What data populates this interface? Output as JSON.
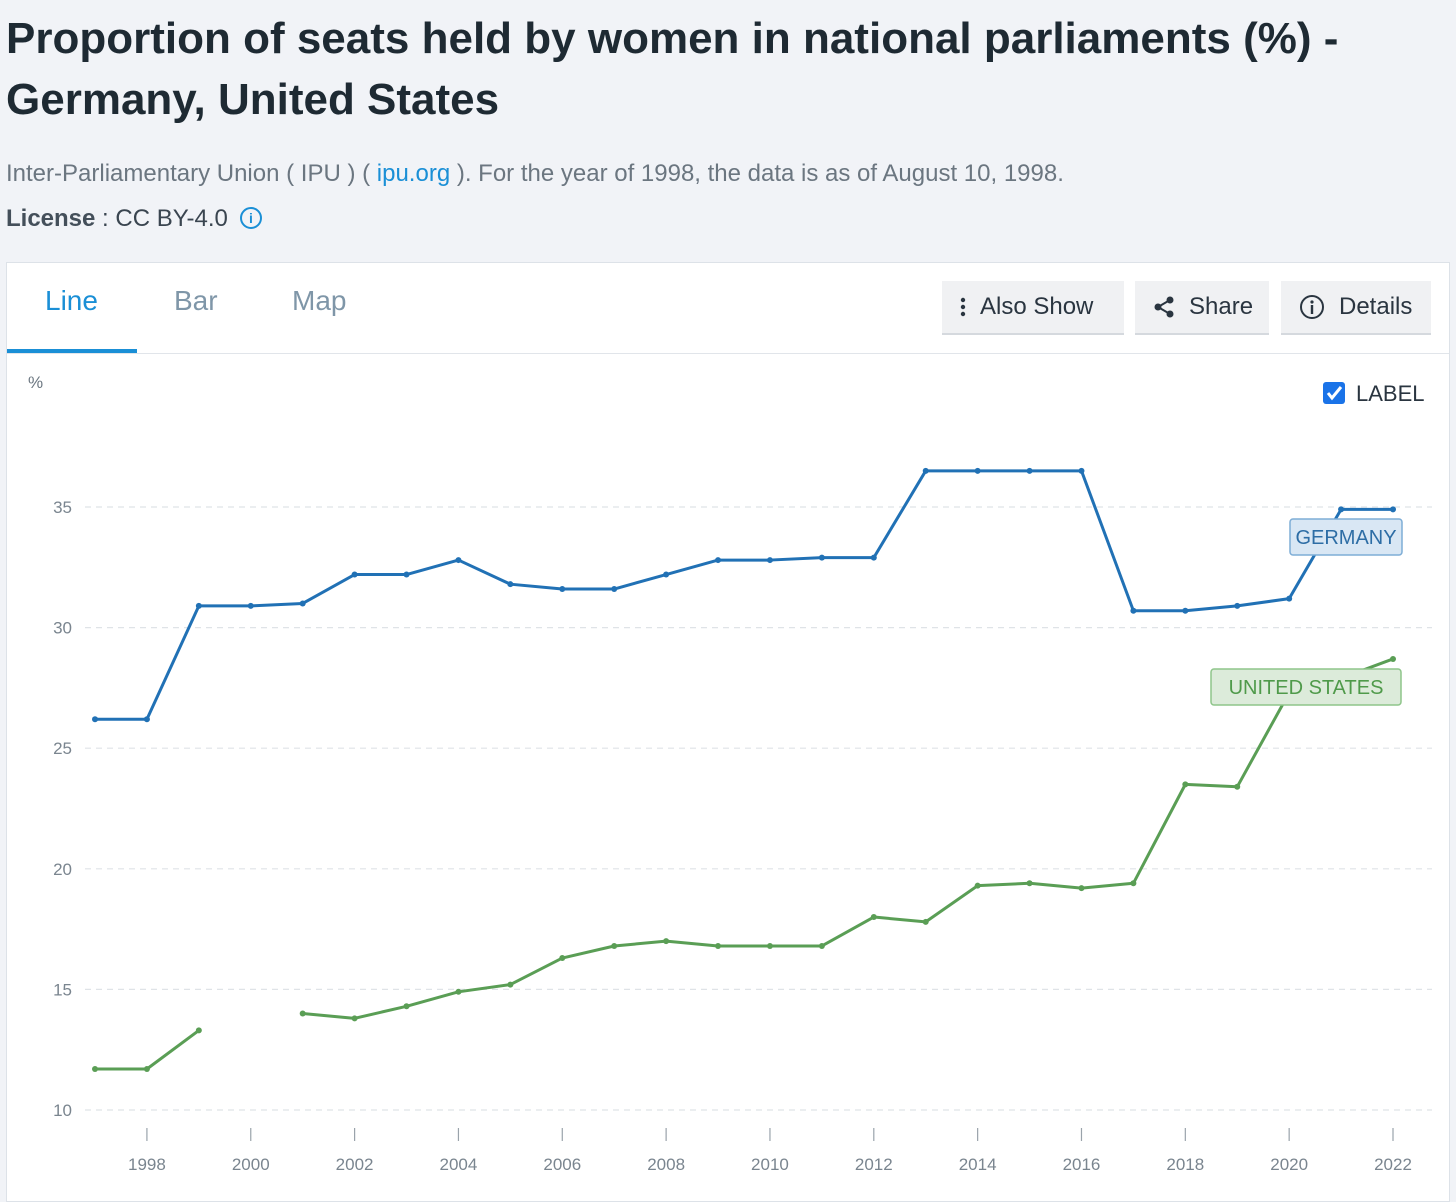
{
  "header": {
    "title": "Proportion of seats held by women in national parliaments (%) - Germany, United States",
    "source_prefix": "Inter-Parliamentary Union ( IPU ) ( ",
    "source_link": "ipu.org",
    "source_suffix": " ). For the year of 1998, the data is as of August 10, 1998.",
    "license_label": "License",
    "license_value": " : CC BY-4.0"
  },
  "tabs": [
    {
      "label": "Line",
      "active": true
    },
    {
      "label": "Bar",
      "active": false
    },
    {
      "label": "Map",
      "active": false
    }
  ],
  "toolbar": {
    "also_show": "Also Show",
    "share": "Share",
    "details": "Details"
  },
  "label_toggle": {
    "text": "LABEL",
    "checked": true
  },
  "colors": {
    "accent": "#1a8fd6",
    "germany": "#2171b5",
    "united_states": "#5a9e55"
  },
  "chart_data": {
    "type": "line",
    "ylabel": "%",
    "ylim": [
      10,
      37
    ],
    "yticks": [
      10,
      15,
      20,
      25,
      30,
      35
    ],
    "xlim": [
      1997,
      2022
    ],
    "xticks": [
      1998,
      2000,
      2002,
      2004,
      2006,
      2008,
      2010,
      2012,
      2014,
      2016,
      2018,
      2020,
      2022
    ],
    "grid": "horizontal dashed",
    "series": [
      {
        "name": "GERMANY",
        "color": "#2171b5",
        "x": [
          1997,
          1998,
          1999,
          2000,
          2001,
          2002,
          2003,
          2004,
          2005,
          2006,
          2007,
          2008,
          2009,
          2010,
          2011,
          2012,
          2013,
          2014,
          2015,
          2016,
          2017,
          2018,
          2019,
          2020,
          2021,
          2022
        ],
        "y": [
          26.2,
          26.2,
          30.9,
          30.9,
          31.0,
          32.2,
          32.2,
          32.8,
          31.8,
          31.6,
          31.6,
          32.2,
          32.8,
          32.8,
          32.9,
          32.9,
          36.5,
          36.5,
          36.5,
          36.5,
          30.7,
          30.7,
          30.9,
          31.2,
          34.9,
          34.9
        ]
      },
      {
        "name": "UNITED STATES",
        "color": "#5a9e55",
        "x": [
          1997,
          1998,
          1999,
          2000,
          2001,
          2002,
          2003,
          2004,
          2005,
          2006,
          2007,
          2008,
          2009,
          2010,
          2011,
          2012,
          2013,
          2014,
          2015,
          2016,
          2017,
          2018,
          2019,
          2020,
          2021,
          2022
        ],
        "y": [
          11.7,
          11.7,
          13.3,
          null,
          14.0,
          13.8,
          14.3,
          14.9,
          15.2,
          16.3,
          16.8,
          17.0,
          16.8,
          16.8,
          16.8,
          18.0,
          17.8,
          19.3,
          19.4,
          19.2,
          19.4,
          23.5,
          23.4,
          27.3,
          27.9,
          28.7
        ]
      }
    ]
  }
}
